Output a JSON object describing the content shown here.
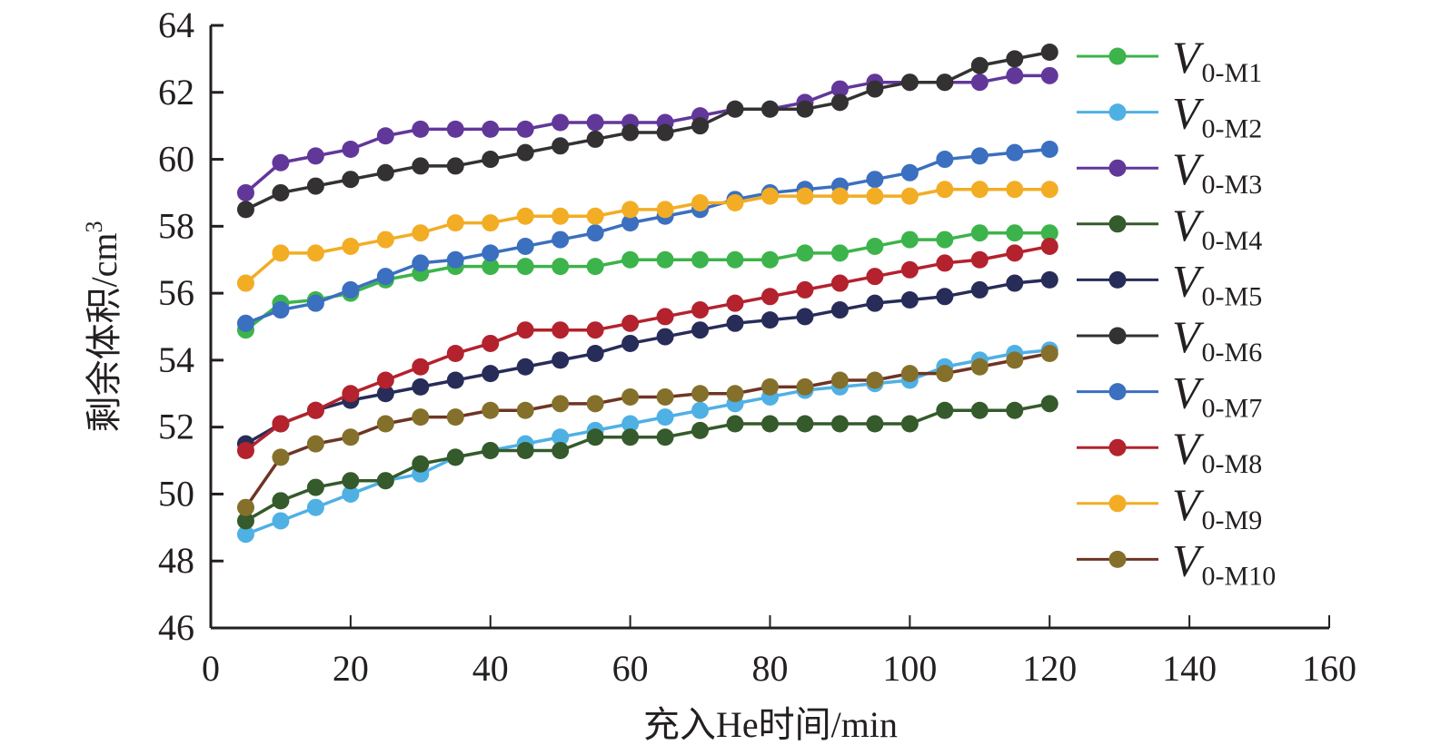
{
  "chart_data": {
    "type": "line",
    "title": "",
    "xlabel": "充入He时间/min",
    "ylabel": "剩余体积/cm",
    "ylabel_superscript": "3",
    "xlim": [
      0,
      160
    ],
    "ylim": [
      46,
      64
    ],
    "xticks": [
      0,
      20,
      40,
      60,
      80,
      100,
      120,
      140,
      160
    ],
    "yticks": [
      46,
      48,
      50,
      52,
      54,
      56,
      58,
      60,
      62,
      64
    ],
    "grid": false,
    "legend_position": "right",
    "x": [
      5,
      10,
      15,
      20,
      25,
      30,
      35,
      40,
      45,
      50,
      55,
      60,
      65,
      70,
      75,
      80,
      85,
      90,
      95,
      100,
      105,
      110,
      115,
      120
    ],
    "series": [
      {
        "name": "V",
        "subscript": "0-M1",
        "color": "#3cb44b",
        "values": [
          54.9,
          55.7,
          55.8,
          56.0,
          56.4,
          56.6,
          56.8,
          56.8,
          56.8,
          56.8,
          56.8,
          57.0,
          57.0,
          57.0,
          57.0,
          57.0,
          57.2,
          57.2,
          57.4,
          57.6,
          57.6,
          57.8,
          57.8,
          57.8
        ]
      },
      {
        "name": "V",
        "subscript": "0-M2",
        "color": "#4fb0e4",
        "values": [
          48.8,
          49.2,
          49.6,
          50.0,
          50.4,
          50.6,
          51.1,
          51.3,
          51.5,
          51.7,
          51.9,
          52.1,
          52.3,
          52.5,
          52.7,
          52.9,
          53.1,
          53.2,
          53.3,
          53.4,
          53.8,
          54.0,
          54.2,
          54.3
        ]
      },
      {
        "name": "V",
        "subscript": "0-M3",
        "color": "#62379a",
        "values": [
          59.0,
          59.9,
          60.1,
          60.3,
          60.7,
          60.9,
          60.9,
          60.9,
          60.9,
          61.1,
          61.1,
          61.1,
          61.1,
          61.3,
          61.5,
          61.5,
          61.7,
          62.1,
          62.3,
          62.3,
          62.3,
          62.3,
          62.5,
          62.5
        ]
      },
      {
        "name": "V",
        "subscript": "0-M4",
        "color": "#355a2b",
        "values": [
          49.2,
          49.8,
          50.2,
          50.4,
          50.4,
          50.9,
          51.1,
          51.3,
          51.3,
          51.3,
          51.7,
          51.7,
          51.7,
          51.9,
          52.1,
          52.1,
          52.1,
          52.1,
          52.1,
          52.1,
          52.5,
          52.5,
          52.5,
          52.7
        ]
      },
      {
        "name": "V",
        "subscript": "0-M5",
        "color": "#272c58",
        "values": [
          51.5,
          52.1,
          52.5,
          52.8,
          53.0,
          53.2,
          53.4,
          53.6,
          53.8,
          54.0,
          54.2,
          54.5,
          54.7,
          54.9,
          55.1,
          55.2,
          55.3,
          55.5,
          55.7,
          55.8,
          55.9,
          56.1,
          56.3,
          56.4
        ]
      },
      {
        "name": "V",
        "subscript": "0-M6",
        "color": "#333132",
        "values": [
          58.5,
          59.0,
          59.2,
          59.4,
          59.6,
          59.8,
          59.8,
          60.0,
          60.2,
          60.4,
          60.6,
          60.8,
          60.8,
          61.0,
          61.5,
          61.5,
          61.5,
          61.7,
          62.1,
          62.3,
          62.3,
          62.8,
          63.0,
          63.2
        ]
      },
      {
        "name": "V",
        "subscript": "0-M7",
        "color": "#3b6fbf",
        "values": [
          55.1,
          55.5,
          55.7,
          56.1,
          56.5,
          56.9,
          57.0,
          57.2,
          57.4,
          57.6,
          57.8,
          58.1,
          58.3,
          58.5,
          58.8,
          59.0,
          59.1,
          59.2,
          59.4,
          59.6,
          60.0,
          60.1,
          60.2,
          60.3
        ]
      },
      {
        "name": "V",
        "subscript": "0-M8",
        "color": "#b3222d",
        "values": [
          51.3,
          52.1,
          52.5,
          53.0,
          53.4,
          53.8,
          54.2,
          54.5,
          54.9,
          54.9,
          54.9,
          55.1,
          55.3,
          55.5,
          55.7,
          55.9,
          56.1,
          56.3,
          56.5,
          56.7,
          56.9,
          57.0,
          57.2,
          57.4
        ]
      },
      {
        "name": "V",
        "subscript": "0-M9",
        "color": "#f2ad24",
        "values": [
          56.3,
          57.2,
          57.2,
          57.4,
          57.6,
          57.8,
          58.1,
          58.1,
          58.3,
          58.3,
          58.3,
          58.5,
          58.5,
          58.7,
          58.7,
          58.9,
          58.9,
          58.9,
          58.9,
          58.9,
          59.1,
          59.1,
          59.1,
          59.1
        ]
      },
      {
        "name": "V",
        "subscript": "0-M10",
        "color": "#84702b",
        "line_color": "#6e3524",
        "values": [
          49.6,
          51.1,
          51.5,
          51.7,
          52.1,
          52.3,
          52.3,
          52.5,
          52.5,
          52.7,
          52.7,
          52.9,
          52.9,
          53.0,
          53.0,
          53.2,
          53.2,
          53.4,
          53.4,
          53.6,
          53.6,
          53.8,
          54.0,
          54.2
        ]
      }
    ]
  }
}
